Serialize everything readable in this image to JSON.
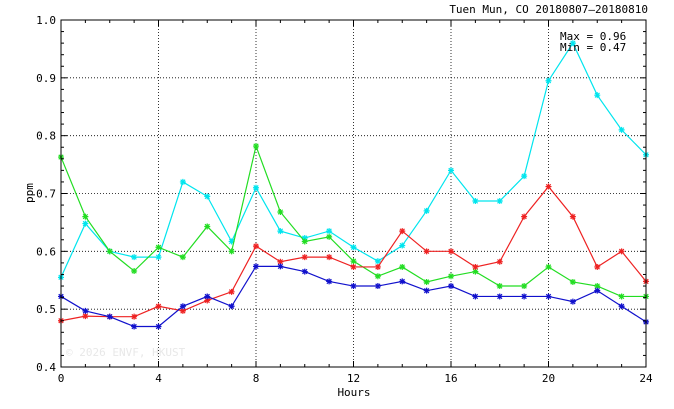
{
  "chart_data": {
    "type": "line",
    "title": "Tuen Mun, CO 20180807–20180810",
    "xlabel": "Hours",
    "ylabel": "ppm",
    "xlim": [
      0,
      24
    ],
    "ylim": [
      0.4,
      1.0
    ],
    "xticks": [
      0,
      4,
      8,
      12,
      16,
      20,
      24
    ],
    "xtick_labels": [
      "0",
      "4",
      "8",
      "12",
      "16",
      "20",
      "24"
    ],
    "yticks": [
      0.4,
      0.5,
      0.6,
      0.7,
      0.8,
      0.9,
      1.0
    ],
    "ytick_labels": [
      "0.4",
      "0.5",
      "0.6",
      "0.7",
      "0.8",
      "0.9",
      "1.0"
    ],
    "grid": true,
    "annotations": [
      "Max = 0.96",
      "Min = 0.47"
    ],
    "watermark": "© 2026  ENVF, HKUST",
    "x": [
      0,
      1,
      2,
      3,
      4,
      5,
      6,
      7,
      8,
      9,
      10,
      11,
      12,
      13,
      14,
      15,
      16,
      17,
      18,
      19,
      20,
      21,
      22,
      23,
      24
    ],
    "series": [
      {
        "color": "#00e5ee",
        "values": [
          0.555,
          0.648,
          0.6,
          0.59,
          0.59,
          0.72,
          0.695,
          0.617,
          0.71,
          0.635,
          0.623,
          0.635,
          0.607,
          0.583,
          0.61,
          0.67,
          0.74,
          0.687,
          0.687,
          0.73,
          0.895,
          0.96,
          0.87,
          0.81,
          0.767
        ]
      },
      {
        "color": "#22dd22",
        "values": [
          0.763,
          0.66,
          0.6,
          0.566,
          0.607,
          0.59,
          0.643,
          0.6,
          0.782,
          0.668,
          0.617,
          0.625,
          0.583,
          0.557,
          0.573,
          0.547,
          0.557,
          0.565,
          0.54,
          0.54,
          0.573,
          0.547,
          0.54,
          0.522,
          0.522
        ]
      },
      {
        "color": "#ee2222",
        "values": [
          0.48,
          0.488,
          0.487,
          0.487,
          0.505,
          0.497,
          0.515,
          0.53,
          0.609,
          0.582,
          0.59,
          0.59,
          0.573,
          0.573,
          0.635,
          0.6,
          0.6,
          0.573,
          0.582,
          0.66,
          0.712,
          0.66,
          0.573,
          0.6,
          0.548
        ]
      },
      {
        "color": "#1111cc",
        "values": [
          0.522,
          0.497,
          0.487,
          0.47,
          0.47,
          0.505,
          0.522,
          0.505,
          0.574,
          0.574,
          0.565,
          0.548,
          0.54,
          0.54,
          0.548,
          0.532,
          0.54,
          0.522,
          0.522,
          0.522,
          0.522,
          0.513,
          0.532,
          0.505,
          0.478
        ]
      }
    ]
  }
}
